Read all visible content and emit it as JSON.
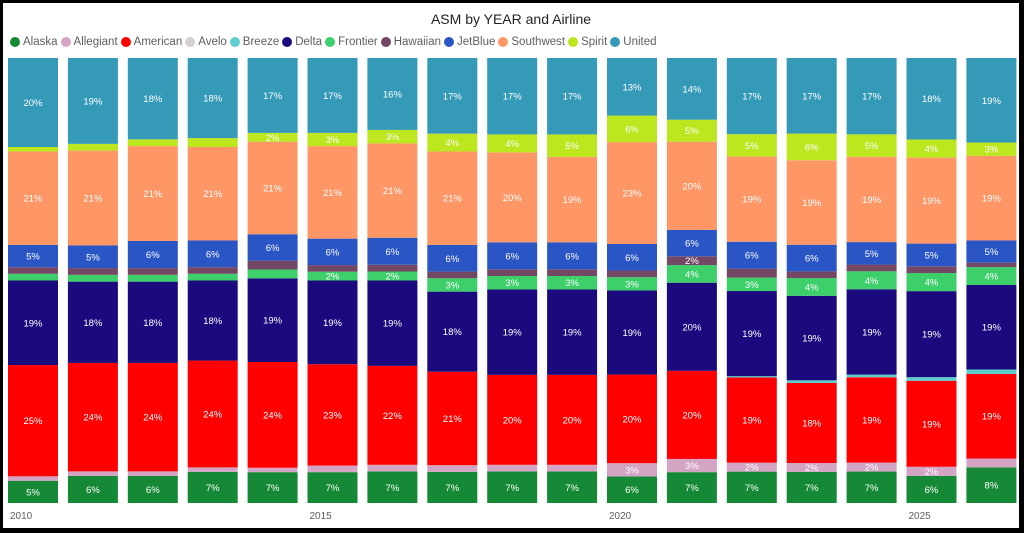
{
  "chart_data": {
    "type": "bar",
    "stacked": true,
    "normalized": true,
    "title": "ASM by YEAR and Airline",
    "legend_position": "top-left",
    "categories": [
      "2010",
      "2011",
      "2012",
      "2013",
      "2014",
      "2015",
      "2016",
      "2017",
      "2018",
      "2019",
      "2020",
      "2021",
      "2022",
      "2023",
      "2024",
      "2025",
      "2026"
    ],
    "x_tick_labels": [
      "2010",
      "2015",
      "2020",
      "2025"
    ],
    "series": [
      {
        "name": "Alaska",
        "color": "#168936",
        "values": [
          5,
          6,
          6,
          7,
          7,
          7,
          7,
          7,
          7,
          7,
          6,
          7,
          7,
          7,
          7,
          6,
          8
        ],
        "labels": [
          "5%",
          "6%",
          "6%",
          "7%",
          "7%",
          "7%",
          "7%",
          "7%",
          "7%",
          "7%",
          "6%",
          "7%",
          "7%",
          "7%",
          "7%",
          "6%",
          "8%"
        ]
      },
      {
        "name": "Allegiant",
        "color": "#d3a4c4",
        "values": [
          1,
          1,
          1,
          1,
          1,
          1.5,
          1.5,
          1.5,
          1.5,
          1.5,
          3,
          3,
          2,
          2,
          2,
          2,
          2
        ],
        "labels": [
          "",
          "",
          "",
          "",
          "",
          "",
          "",
          "",
          "",
          "",
          "3%",
          "3%",
          "2%",
          "2%",
          "2%",
          "2%",
          ""
        ]
      },
      {
        "name": "American",
        "color": "#ff0000",
        "values": [
          25,
          24,
          24,
          24,
          24,
          23,
          22,
          21,
          20,
          20,
          20,
          20,
          19,
          18,
          19,
          19,
          19
        ],
        "labels": [
          "25%",
          "24%",
          "24%",
          "24%",
          "24%",
          "23%",
          "22%",
          "21%",
          "20%",
          "20%",
          "20%",
          "20%",
          "19%",
          "18%",
          "19%",
          "19%",
          "19%"
        ]
      },
      {
        "name": "Avelo",
        "color": "#d5cfcd",
        "values": [
          0,
          0,
          0,
          0,
          0,
          0,
          0,
          0,
          0,
          0,
          0,
          0,
          0,
          0,
          0,
          0,
          0
        ],
        "labels": [
          "",
          "",
          "",
          "",
          "",
          "",
          "",
          "",
          "",
          "",
          "",
          "",
          "",
          "",
          "",
          "",
          ""
        ]
      },
      {
        "name": "Breeze",
        "color": "#5fcdce",
        "values": [
          0,
          0,
          0,
          0,
          0,
          0,
          0,
          0,
          0,
          0,
          0,
          0,
          0.3,
          0.6,
          0.6,
          0.8,
          1
        ],
        "labels": [
          "",
          "",
          "",
          "",
          "",
          "",
          "",
          "",
          "",
          "",
          "",
          "",
          "",
          "",
          "",
          "",
          ""
        ]
      },
      {
        "name": "Delta",
        "color": "#1b0a7d",
        "values": [
          19,
          18,
          18,
          18,
          19,
          19,
          19,
          18,
          19,
          19,
          19,
          20,
          19,
          19,
          19,
          19,
          19
        ],
        "labels": [
          "19%",
          "18%",
          "18%",
          "18%",
          "19%",
          "19%",
          "19%",
          "18%",
          "19%",
          "19%",
          "19%",
          "20%",
          "19%",
          "19%",
          "19%",
          "19%",
          "19%"
        ]
      },
      {
        "name": "Frontier",
        "color": "#3ccf6a",
        "values": [
          1.5,
          1.5,
          1.5,
          1.5,
          2,
          2,
          2,
          3,
          3,
          3,
          3,
          4,
          3,
          4,
          4,
          4,
          4
        ],
        "labels": [
          "",
          "",
          "",
          "",
          "",
          "2%",
          "2%",
          "3%",
          "3%",
          "3%",
          "3%",
          "4%",
          "3%",
          "4%",
          "4%",
          "4%",
          "4%"
        ]
      },
      {
        "name": "Hawaiian",
        "color": "#734865",
        "values": [
          1.5,
          1.5,
          1.5,
          1.5,
          2,
          1.5,
          1.5,
          1.5,
          1.5,
          1.5,
          1.5,
          2,
          2,
          1.5,
          1.5,
          1.5,
          1
        ],
        "labels": [
          "",
          "",
          "",
          "",
          "",
          "",
          "",
          "",
          "",
          "",
          "",
          "2%",
          "",
          "",
          "",
          "",
          ""
        ]
      },
      {
        "name": "JetBlue",
        "color": "#2a55c5",
        "values": [
          5,
          5,
          6,
          6,
          6,
          6,
          6,
          6,
          6,
          6,
          6,
          6,
          6,
          6,
          5,
          5,
          5
        ],
        "labels": [
          "5%",
          "5%",
          "6%",
          "6%",
          "6%",
          "6%",
          "6%",
          "6%",
          "6%",
          "6%",
          "6%",
          "6%",
          "6%",
          "6%",
          "5%",
          "5%",
          "5%"
        ]
      },
      {
        "name": "Southwest",
        "color": "#fe9666",
        "values": [
          21,
          21,
          21,
          21,
          21,
          21,
          21,
          21,
          20,
          19,
          23,
          20,
          19,
          19,
          19,
          19,
          19
        ],
        "labels": [
          "21%",
          "21%",
          "21%",
          "21%",
          "21%",
          "21%",
          "21%",
          "21%",
          "20%",
          "19%",
          "23%",
          "20%",
          "19%",
          "19%",
          "19%",
          "19%",
          "19%"
        ]
      },
      {
        "name": "Spirit",
        "color": "#bce61e",
        "values": [
          1,
          1.5,
          1.5,
          2,
          2,
          3,
          3,
          4,
          4,
          5,
          6,
          5,
          5,
          6,
          5,
          4,
          3
        ],
        "labels": [
          "",
          "",
          "",
          "",
          "2%",
          "3%",
          "3%",
          "4%",
          "4%",
          "5%",
          "6%",
          "5%",
          "5%",
          "6%",
          "5%",
          "4%",
          "3%"
        ]
      },
      {
        "name": "United",
        "color": "#3599b8",
        "values": [
          20,
          19,
          18,
          18,
          17,
          17,
          16,
          17,
          17,
          17,
          13,
          14,
          17,
          17,
          17,
          18,
          19
        ],
        "labels": [
          "20%",
          "19%",
          "18%",
          "18%",
          "17%",
          "17%",
          "16%",
          "17%",
          "17%",
          "17%",
          "13%",
          "14%",
          "17%",
          "17%",
          "17%",
          "18%",
          "19%"
        ]
      }
    ]
  }
}
